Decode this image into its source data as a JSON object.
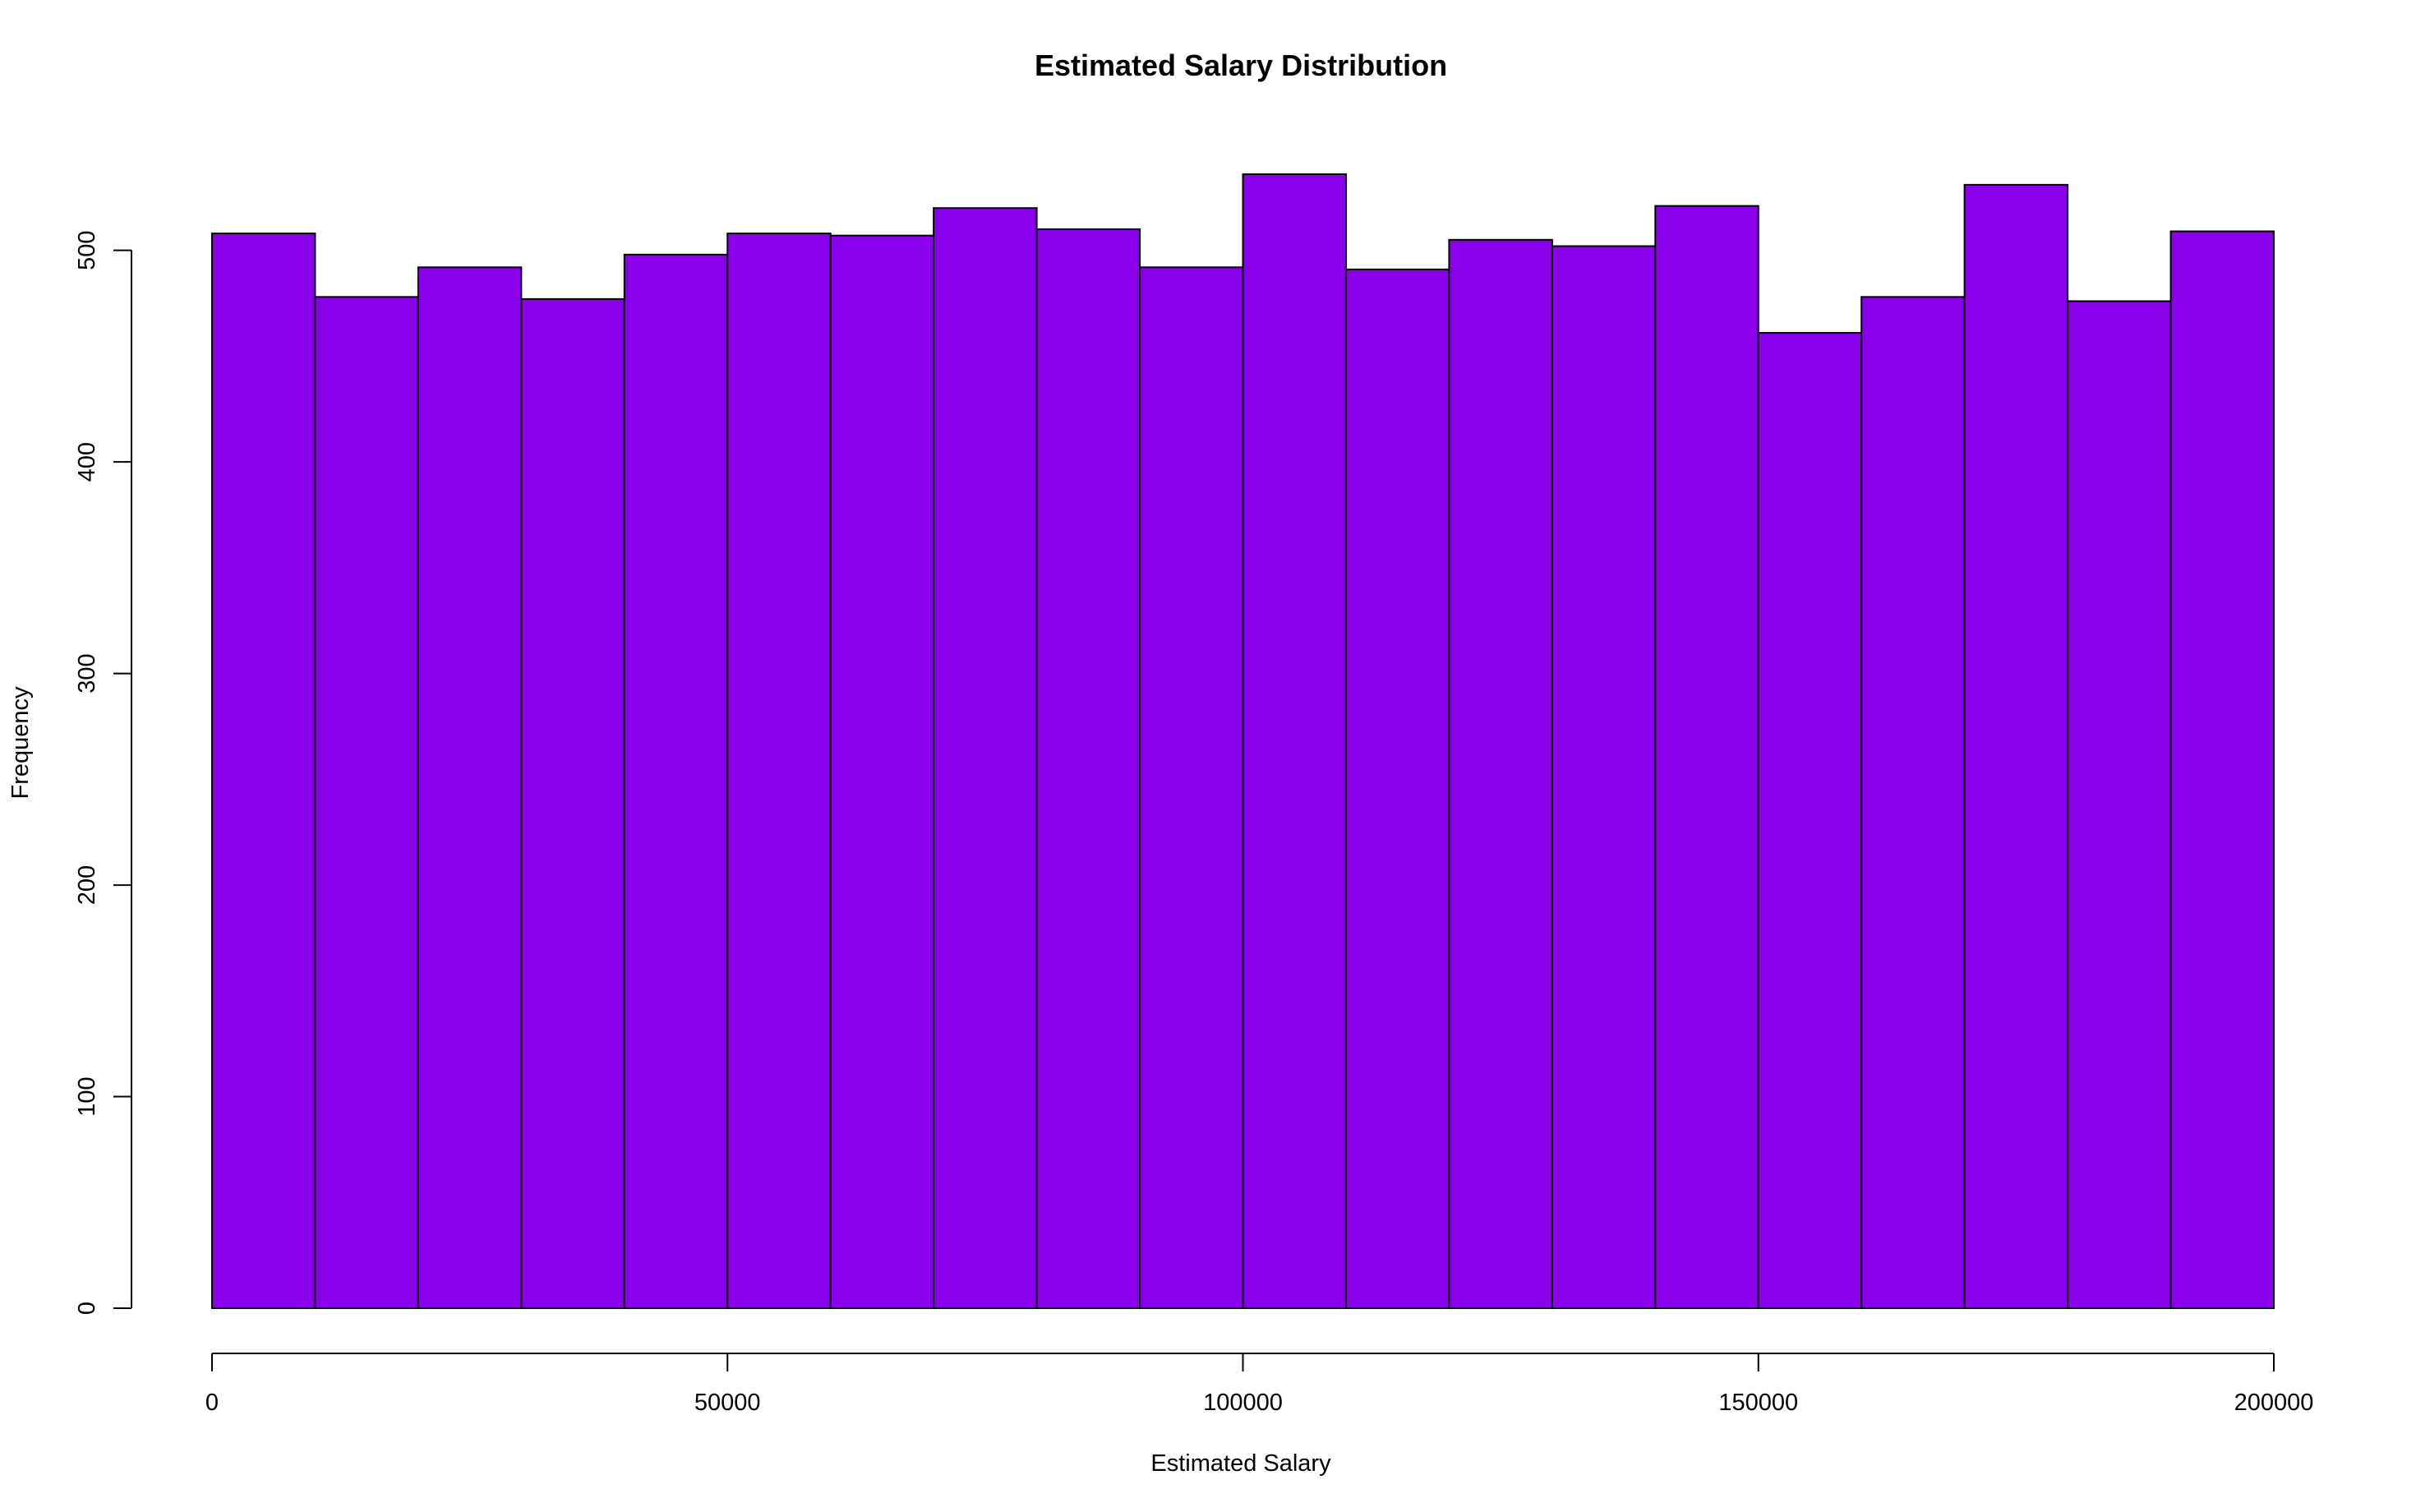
{
  "chart_data": {
    "type": "bar",
    "title": "Estimated Salary Distribution",
    "xlabel": "Estimated Salary",
    "ylabel": "Frequency",
    "bar_color": "#8b00ea",
    "edge_color": "#000000",
    "bins": [
      {
        "x0": 0,
        "x1": 10000,
        "count": 508
      },
      {
        "x0": 10000,
        "x1": 20000,
        "count": 478
      },
      {
        "x0": 20000,
        "x1": 30000,
        "count": 492
      },
      {
        "x0": 30000,
        "x1": 40000,
        "count": 477
      },
      {
        "x0": 40000,
        "x1": 50000,
        "count": 498
      },
      {
        "x0": 50000,
        "x1": 60000,
        "count": 508
      },
      {
        "x0": 60000,
        "x1": 70000,
        "count": 507
      },
      {
        "x0": 70000,
        "x1": 80000,
        "count": 520
      },
      {
        "x0": 80000,
        "x1": 90000,
        "count": 510
      },
      {
        "x0": 90000,
        "x1": 100000,
        "count": 492
      },
      {
        "x0": 100000,
        "x1": 110000,
        "count": 536
      },
      {
        "x0": 110000,
        "x1": 120000,
        "count": 491
      },
      {
        "x0": 120000,
        "x1": 130000,
        "count": 505
      },
      {
        "x0": 130000,
        "x1": 140000,
        "count": 502
      },
      {
        "x0": 140000,
        "x1": 150000,
        "count": 521
      },
      {
        "x0": 150000,
        "x1": 160000,
        "count": 461
      },
      {
        "x0": 160000,
        "x1": 170000,
        "count": 478
      },
      {
        "x0": 170000,
        "x1": 180000,
        "count": 531
      },
      {
        "x0": 180000,
        "x1": 190000,
        "count": 476
      },
      {
        "x0": 190000,
        "x1": 200000,
        "count": 509
      }
    ],
    "xlim": [
      0,
      200000
    ],
    "ylim": [
      0,
      536
    ],
    "x_ticks": [
      0,
      50000,
      100000,
      150000,
      200000
    ],
    "y_ticks": [
      0,
      100,
      200,
      300,
      400,
      500
    ],
    "grid": false,
    "legend": "none"
  }
}
